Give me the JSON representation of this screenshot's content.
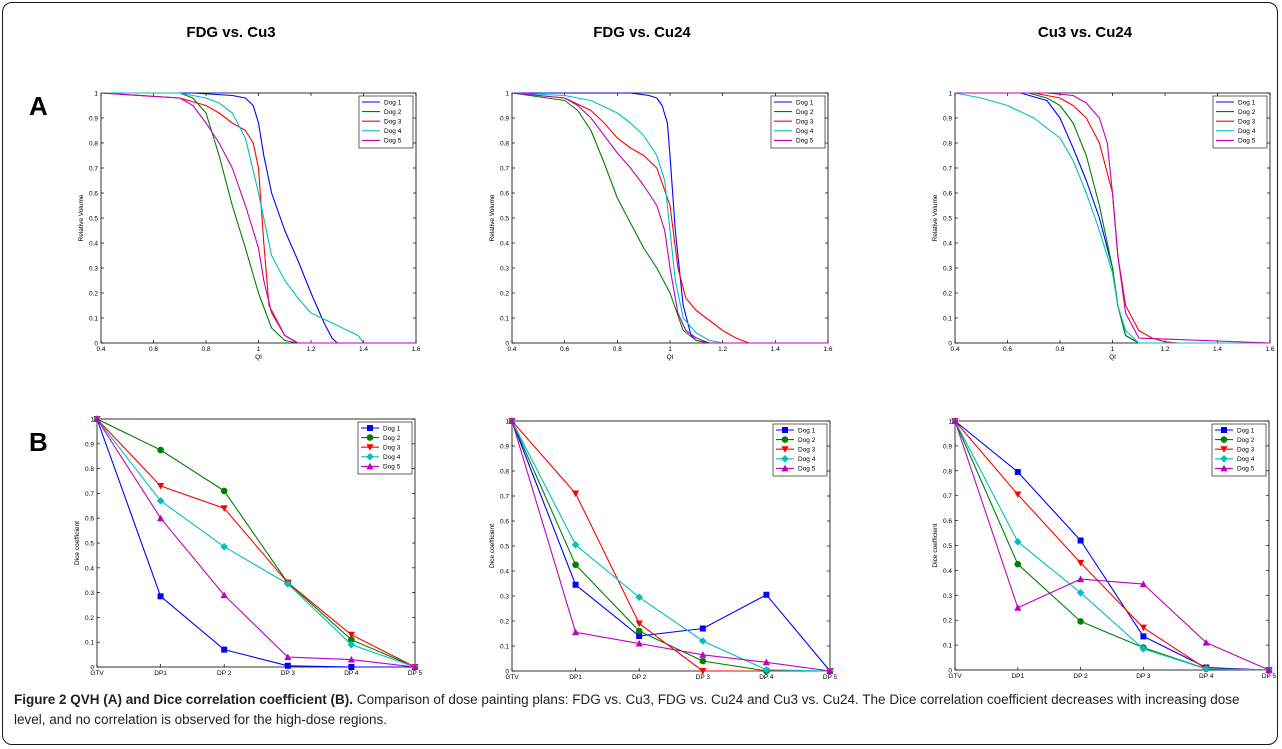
{
  "column_titles": [
    "FDG vs. Cu3",
    "FDG vs. Cu24",
    "Cu3 vs. Cu24"
  ],
  "row_labels": [
    "A",
    "B"
  ],
  "caption": {
    "title": "Figure 2 QVH (A) and Dice correlation coefficient (B).",
    "text": " Comparison of dose painting plans: FDG vs. Cu3, FDG vs. Cu24 and Cu3 vs. Cu24. The Dice correlation coefficient decreases with increasing dose level, and no correlation is observed for the high-dose regions."
  },
  "colors": {
    "Dog 1": "#0000ff",
    "Dog 2": "#008000",
    "Dog 3": "#ff0000",
    "Dog 4": "#00bfbf",
    "Dog 5": "#bf00bf"
  },
  "chart_data": [
    {
      "type": "line",
      "panel": "A",
      "title": "FDG vs. Cu3",
      "xlabel": "QI",
      "ylabel": "Relative Volume",
      "xlim": [
        0.4,
        1.6
      ],
      "ylim": [
        0,
        1
      ],
      "xticks": [
        "0.4",
        "0.6",
        "0.8",
        "1",
        "1.2",
        "1.4",
        "1.6"
      ],
      "yticks": [
        "0",
        "0.1",
        "0.2",
        "0.3",
        "0.4",
        "0.5",
        "0.6",
        "0.7",
        "0.8",
        "0.9",
        "1"
      ],
      "legend": "top-right",
      "series": [
        {
          "name": "Dog 1",
          "x": [
            0.4,
            0.75,
            0.9,
            0.95,
            0.98,
            1.0,
            1.02,
            1.05,
            1.1,
            1.15,
            1.2,
            1.25,
            1.28,
            1.3,
            1.6
          ],
          "y": [
            1,
            1,
            0.99,
            0.98,
            0.95,
            0.88,
            0.75,
            0.6,
            0.45,
            0.33,
            0.2,
            0.08,
            0.02,
            0,
            0
          ]
        },
        {
          "name": "Dog 2",
          "x": [
            0.4,
            0.7,
            0.75,
            0.8,
            0.85,
            0.9,
            0.95,
            1.0,
            1.05,
            1.1,
            1.15,
            1.6
          ],
          "y": [
            1,
            1,
            0.98,
            0.92,
            0.75,
            0.55,
            0.38,
            0.2,
            0.06,
            0.01,
            0,
            0
          ]
        },
        {
          "name": "Dog 3",
          "x": [
            0.4,
            0.7,
            0.8,
            0.85,
            0.9,
            0.95,
            0.98,
            1.0,
            1.02,
            1.04,
            1.1,
            1.15,
            1.6
          ],
          "y": [
            1,
            0.98,
            0.95,
            0.92,
            0.88,
            0.85,
            0.8,
            0.7,
            0.4,
            0.15,
            0.03,
            0,
            0
          ]
        },
        {
          "name": "Dog 4",
          "x": [
            0.4,
            0.7,
            0.8,
            0.85,
            0.9,
            0.95,
            1.0,
            1.05,
            1.1,
            1.15,
            1.2,
            1.3,
            1.38,
            1.4,
            1.6
          ],
          "y": [
            1,
            1,
            0.98,
            0.96,
            0.92,
            0.82,
            0.6,
            0.35,
            0.25,
            0.18,
            0.12,
            0.07,
            0.03,
            0,
            0
          ]
        },
        {
          "name": "Dog 5",
          "x": [
            0.4,
            0.7,
            0.75,
            0.8,
            0.85,
            0.9,
            0.95,
            1.0,
            1.02,
            1.05,
            1.1,
            1.15,
            1.6
          ],
          "y": [
            1,
            0.98,
            0.95,
            0.88,
            0.8,
            0.7,
            0.55,
            0.38,
            0.25,
            0.12,
            0.03,
            0,
            0
          ]
        }
      ]
    },
    {
      "type": "line",
      "panel": "A",
      "title": "FDG vs. Cu24",
      "xlabel": "QI",
      "ylabel": "Relative Volume",
      "xlim": [
        0.4,
        1.6
      ],
      "ylim": [
        0,
        1
      ],
      "xticks": [
        "0.4",
        "0.6",
        "0.8",
        "1",
        "1.2",
        "1.4",
        "1.6"
      ],
      "yticks": [
        "0",
        "0.1",
        "0.2",
        "0.3",
        "0.4",
        "0.5",
        "0.6",
        "0.7",
        "0.8",
        "0.9",
        "1"
      ],
      "legend": "top-right",
      "series": [
        {
          "name": "Dog 1",
          "x": [
            0.4,
            0.85,
            0.92,
            0.95,
            0.97,
            0.99,
            1.0,
            1.02,
            1.05,
            1.08,
            1.1,
            1.15,
            1.6
          ],
          "y": [
            1,
            1,
            0.99,
            0.98,
            0.95,
            0.88,
            0.75,
            0.45,
            0.15,
            0.03,
            0.01,
            0,
            0
          ]
        },
        {
          "name": "Dog 2",
          "x": [
            0.4,
            0.6,
            0.65,
            0.7,
            0.75,
            0.8,
            0.85,
            0.9,
            0.95,
            1.0,
            1.05,
            1.1,
            1.15,
            1.6
          ],
          "y": [
            1,
            0.97,
            0.93,
            0.85,
            0.72,
            0.58,
            0.48,
            0.38,
            0.3,
            0.2,
            0.05,
            0.01,
            0,
            0
          ]
        },
        {
          "name": "Dog 3",
          "x": [
            0.4,
            0.6,
            0.7,
            0.75,
            0.8,
            0.85,
            0.9,
            0.95,
            1.0,
            1.03,
            1.06,
            1.1,
            1.15,
            1.2,
            1.25,
            1.3,
            1.6
          ],
          "y": [
            1,
            0.98,
            0.93,
            0.88,
            0.82,
            0.78,
            0.75,
            0.7,
            0.55,
            0.3,
            0.18,
            0.13,
            0.09,
            0.05,
            0.02,
            0,
            0
          ]
        },
        {
          "name": "Dog 4",
          "x": [
            0.4,
            0.6,
            0.7,
            0.8,
            0.85,
            0.9,
            0.95,
            0.98,
            1.0,
            1.02,
            1.05,
            1.1,
            1.15,
            1.2,
            1.6
          ],
          "y": [
            1,
            0.99,
            0.97,
            0.92,
            0.88,
            0.83,
            0.75,
            0.65,
            0.45,
            0.25,
            0.1,
            0.04,
            0.01,
            0,
            0
          ]
        },
        {
          "name": "Dog 5",
          "x": [
            0.4,
            0.6,
            0.65,
            0.7,
            0.75,
            0.8,
            0.85,
            0.9,
            0.95,
            0.98,
            1.0,
            1.03,
            1.06,
            1.1,
            1.15,
            1.6
          ],
          "y": [
            1,
            0.98,
            0.95,
            0.9,
            0.83,
            0.76,
            0.7,
            0.63,
            0.55,
            0.45,
            0.3,
            0.12,
            0.05,
            0.02,
            0,
            0
          ]
        }
      ]
    },
    {
      "type": "line",
      "panel": "A",
      "title": "Cu3 vs. Cu24",
      "xlabel": "QI",
      "ylabel": "Relative Volume",
      "xlim": [
        0.4,
        1.6
      ],
      "ylim": [
        0,
        1
      ],
      "xticks": [
        "0.4",
        "0.6",
        "0.8",
        "1",
        "1.2",
        "1.4",
        "1.6"
      ],
      "yticks": [
        "0",
        "0.1",
        "0.2",
        "0.3",
        "0.4",
        "0.5",
        "0.6",
        "0.7",
        "0.8",
        "0.9",
        "1"
      ],
      "legend": "top-right",
      "series": [
        {
          "name": "Dog 1",
          "x": [
            0.4,
            0.65,
            0.75,
            0.8,
            0.85,
            0.9,
            0.95,
            1.0,
            1.02,
            1.05,
            1.1,
            1.6
          ],
          "y": [
            1,
            1,
            0.97,
            0.9,
            0.78,
            0.65,
            0.5,
            0.3,
            0.15,
            0.03,
            0,
            0
          ]
        },
        {
          "name": "Dog 2",
          "x": [
            0.4,
            0.68,
            0.75,
            0.8,
            0.85,
            0.9,
            0.95,
            1.0,
            1.02,
            1.05,
            1.1,
            1.6
          ],
          "y": [
            1,
            1,
            0.98,
            0.95,
            0.88,
            0.75,
            0.55,
            0.3,
            0.15,
            0.03,
            0,
            0
          ]
        },
        {
          "name": "Dog 3",
          "x": [
            0.4,
            0.7,
            0.8,
            0.85,
            0.9,
            0.95,
            1.0,
            1.02,
            1.05,
            1.1,
            1.15,
            1.2,
            1.25,
            1.6
          ],
          "y": [
            1,
            1,
            0.98,
            0.95,
            0.9,
            0.8,
            0.6,
            0.35,
            0.15,
            0.05,
            0.02,
            0.005,
            0,
            0
          ]
        },
        {
          "name": "Dog 4",
          "x": [
            0.4,
            0.5,
            0.6,
            0.7,
            0.8,
            0.85,
            0.9,
            0.95,
            1.0,
            1.02,
            1.05,
            1.1,
            1.6
          ],
          "y": [
            1,
            0.98,
            0.95,
            0.9,
            0.82,
            0.73,
            0.6,
            0.45,
            0.28,
            0.15,
            0.05,
            0,
            0
          ]
        },
        {
          "name": "Dog 5",
          "x": [
            0.4,
            0.75,
            0.85,
            0.9,
            0.95,
            0.98,
            1.0,
            1.02,
            1.05,
            1.1,
            1.6
          ],
          "y": [
            1,
            1,
            0.99,
            0.96,
            0.9,
            0.8,
            0.6,
            0.35,
            0.12,
            0.02,
            0
          ]
        }
      ]
    },
    {
      "type": "line",
      "panel": "B",
      "title": "FDG vs. Cu3",
      "xlabel": "",
      "ylabel": "Dice coefficient",
      "categories": [
        "GTV",
        "DP1",
        "DP 2",
        "DP 3",
        "DP 4",
        "DP 5"
      ],
      "ylim": [
        0,
        1
      ],
      "yticks": [
        "0",
        "0.1",
        "0.2",
        "0.3",
        "0.4",
        "0.5",
        "0.6",
        "0.7",
        "0.8",
        "0.9",
        "1"
      ],
      "legend": "top-right",
      "series": [
        {
          "name": "Dog 1",
          "marker": "square",
          "values": [
            1,
            0.285,
            0.07,
            0.005,
            0.0,
            0
          ]
        },
        {
          "name": "Dog 2",
          "marker": "circle",
          "values": [
            1,
            0.875,
            0.71,
            0.34,
            0.11,
            0
          ]
        },
        {
          "name": "Dog 3",
          "marker": "triangle-down",
          "values": [
            1,
            0.73,
            0.64,
            0.34,
            0.13,
            0
          ]
        },
        {
          "name": "Dog 4",
          "marker": "diamond",
          "values": [
            1,
            0.67,
            0.485,
            0.335,
            0.09,
            0
          ]
        },
        {
          "name": "Dog 5",
          "marker": "triangle-up",
          "values": [
            1,
            0.6,
            0.29,
            0.04,
            0.03,
            0
          ]
        }
      ]
    },
    {
      "type": "line",
      "panel": "B",
      "title": "FDG vs. Cu24",
      "xlabel": "",
      "ylabel": "Dice coefficient",
      "categories": [
        "GTV",
        "DP1",
        "DP 2",
        "DP 3",
        "DP 4",
        "DP 5"
      ],
      "ylim": [
        0,
        1
      ],
      "yticks": [
        "0",
        "0.1",
        "0.2",
        "0.3",
        "0.4",
        "0.5",
        "0.6",
        "0.7",
        "0.8",
        "0.9",
        "1"
      ],
      "legend": "top-right",
      "series": [
        {
          "name": "Dog 1",
          "marker": "square",
          "values": [
            1,
            0.345,
            0.14,
            0.17,
            0.305,
            0
          ]
        },
        {
          "name": "Dog 2",
          "marker": "circle",
          "values": [
            1,
            0.425,
            0.16,
            0.04,
            0.0,
            0
          ]
        },
        {
          "name": "Dog 3",
          "marker": "triangle-down",
          "values": [
            1,
            0.71,
            0.19,
            0.0,
            0.0,
            0
          ]
        },
        {
          "name": "Dog 4",
          "marker": "diamond",
          "values": [
            1,
            0.505,
            0.295,
            0.12,
            0.005,
            0
          ]
        },
        {
          "name": "Dog 5",
          "marker": "triangle-up",
          "values": [
            1,
            0.155,
            0.11,
            0.065,
            0.035,
            0
          ]
        }
      ]
    },
    {
      "type": "line",
      "panel": "B",
      "title": "Cu3 vs. Cu24",
      "xlabel": "",
      "ylabel": "Dice coefficient",
      "categories": [
        "GTV",
        "DP1",
        "DP 2",
        "DP 3",
        "DP 4",
        "DP 5"
      ],
      "ylim": [
        0,
        1
      ],
      "yticks": [
        "0",
        "0.1",
        "0.2",
        "0.3",
        "0.4",
        "0.5",
        "0.6",
        "0.7",
        "0.8",
        "0.9",
        "1"
      ],
      "legend": "top-right",
      "series": [
        {
          "name": "Dog 1",
          "marker": "square",
          "values": [
            1,
            0.795,
            0.52,
            0.135,
            0.01,
            0
          ]
        },
        {
          "name": "Dog 2",
          "marker": "circle",
          "values": [
            1,
            0.425,
            0.195,
            0.09,
            0.005,
            0
          ]
        },
        {
          "name": "Dog 3",
          "marker": "triangle-down",
          "values": [
            1,
            0.705,
            0.43,
            0.17,
            0.005,
            0
          ]
        },
        {
          "name": "Dog 4",
          "marker": "diamond",
          "values": [
            1,
            0.515,
            0.31,
            0.085,
            0.005,
            0
          ]
        },
        {
          "name": "Dog 5",
          "marker": "triangle-up",
          "values": [
            1,
            0.25,
            0.365,
            0.345,
            0.11,
            0
          ]
        }
      ]
    }
  ]
}
